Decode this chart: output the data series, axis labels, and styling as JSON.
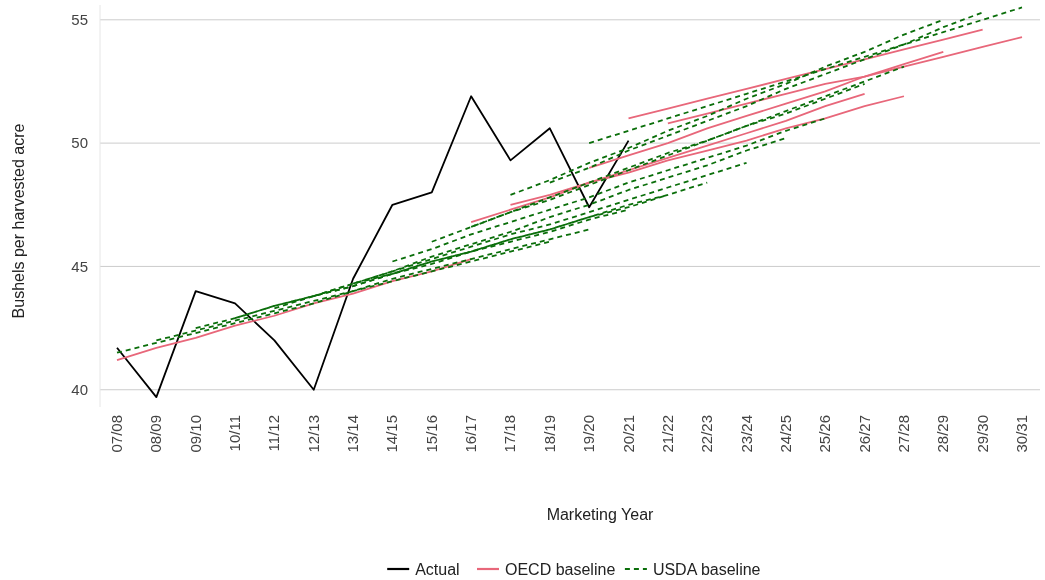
{
  "chart_data": {
    "type": "line",
    "xlabel": "Marketing Year",
    "ylabel": "Bushels per harvested acre",
    "categories": [
      "07/08",
      "08/09",
      "09/10",
      "10/11",
      "11/12",
      "12/13",
      "13/14",
      "14/15",
      "15/16",
      "16/17",
      "17/18",
      "18/19",
      "19/20",
      "20/21",
      "21/22",
      "22/23",
      "23/24",
      "24/25",
      "25/26",
      "26/27",
      "27/28",
      "28/29",
      "29/30",
      "30/31"
    ],
    "ylim": [
      39.3,
      55.6
    ],
    "yticks": [
      40,
      45,
      50,
      55
    ],
    "grid": "y",
    "legend": "bottom",
    "marker": "none",
    "series": [
      {
        "name": "Actual",
        "color": "#000000",
        "line_style": "solid",
        "values": [
          41.7,
          39.7,
          44.0,
          43.5,
          42.0,
          40.0,
          44.5,
          47.5,
          48.0,
          51.9,
          49.3,
          50.6,
          47.4,
          50.1,
          null,
          null,
          null,
          null,
          null,
          null,
          null,
          null,
          null,
          null
        ]
      },
      {
        "name": "OECD baseline",
        "color": "#e8677a",
        "line_style": "solid",
        "values": [
          41.2,
          41.7,
          42.1,
          42.6,
          43.0,
          43.5,
          43.9,
          44.4,
          44.8,
          45.3,
          null,
          null,
          null,
          null,
          null,
          null,
          null,
          null,
          null,
          null,
          null,
          null,
          null,
          null
        ]
      },
      {
        "color": "#e8677a",
        "line_style": "solid",
        "values": [
          null,
          null,
          null,
          null,
          null,
          null,
          null,
          null,
          null,
          46.8,
          47.3,
          47.8,
          48.4,
          48.9,
          49.4,
          49.9,
          50.4,
          50.9,
          51.5,
          52.0,
          null,
          null,
          null,
          null
        ]
      },
      {
        "color": "#e8677a",
        "line_style": "solid",
        "values": [
          null,
          null,
          null,
          null,
          null,
          null,
          null,
          null,
          null,
          null,
          47.5,
          47.9,
          48.4,
          48.8,
          49.3,
          49.7,
          50.1,
          50.6,
          51.0,
          51.5,
          51.9,
          null,
          null,
          null
        ]
      },
      {
        "color": "#e8677a",
        "line_style": "solid",
        "values": [
          null,
          null,
          null,
          null,
          null,
          null,
          null,
          null,
          null,
          null,
          null,
          null,
          49.0,
          49.5,
          50.0,
          50.6,
          51.1,
          51.6,
          52.1,
          52.7,
          53.2,
          53.7,
          null,
          null
        ]
      },
      {
        "color": "#e8677a",
        "line_style": "solid",
        "values": [
          null,
          null,
          null,
          null,
          null,
          null,
          null,
          null,
          null,
          null,
          null,
          null,
          null,
          51.0,
          51.4,
          51.8,
          52.2,
          52.6,
          53.0,
          53.4,
          53.8,
          54.2,
          54.6,
          null
        ]
      },
      {
        "color": "#e8677a",
        "line_style": "solid",
        "values": [
          null,
          null,
          null,
          null,
          null,
          null,
          null,
          null,
          null,
          null,
          null,
          null,
          null,
          null,
          50.8,
          51.2,
          51.6,
          52.0,
          52.4,
          52.7,
          53.1,
          53.5,
          53.9,
          54.3
        ]
      },
      {
        "name": "USDA baseline",
        "color": "#0a6e0a",
        "line_style": "dashed",
        "values": [
          41.5,
          41.9,
          42.3,
          42.7,
          43.1,
          43.5,
          44.0,
          44.4,
          44.8,
          45.2,
          45.6,
          46.0,
          null,
          null,
          null,
          null,
          null,
          null,
          null,
          null,
          null,
          null,
          null,
          null
        ]
      },
      {
        "color": "#0a6e0a",
        "line_style": "dashed",
        "values": [
          null,
          42.0,
          42.4,
          42.8,
          43.2,
          43.6,
          44.0,
          44.5,
          44.9,
          45.3,
          45.7,
          46.1,
          46.5,
          null,
          null,
          null,
          null,
          null,
          null,
          null,
          null,
          null,
          null,
          null
        ]
      },
      {
        "color": "#0a6e0a",
        "line_style": "dashed",
        "values": [
          null,
          null,
          42.5,
          42.9,
          43.4,
          43.8,
          44.2,
          44.7,
          45.1,
          45.6,
          46.0,
          46.4,
          46.9,
          47.3,
          null,
          null,
          null,
          null,
          null,
          null,
          null,
          null,
          null,
          null
        ]
      },
      {
        "color": "#0a6e0a",
        "line_style": "dashed",
        "values": [
          null,
          null,
          null,
          42.9,
          43.4,
          43.8,
          44.3,
          44.7,
          45.2,
          45.6,
          46.1,
          46.5,
          47.0,
          47.4,
          47.9,
          null,
          null,
          null,
          null,
          null,
          null,
          null,
          null,
          null
        ]
      },
      {
        "color": "#0a6e0a",
        "line_style": "dashed",
        "values": [
          null,
          null,
          null,
          null,
          43.3,
          43.8,
          44.2,
          44.7,
          45.2,
          45.6,
          46.1,
          46.5,
          47.0,
          47.5,
          47.9,
          48.4,
          null,
          null,
          null,
          null,
          null,
          null,
          null,
          null
        ]
      },
      {
        "color": "#0a6e0a",
        "line_style": "dashed",
        "values": [
          null,
          null,
          null,
          null,
          null,
          43.8,
          44.3,
          44.8,
          45.3,
          45.8,
          46.3,
          46.7,
          47.2,
          47.7,
          48.2,
          48.7,
          49.2,
          null,
          null,
          null,
          null,
          null,
          null,
          null
        ]
      },
      {
        "color": "#0a6e0a",
        "line_style": "dashed",
        "values": [
          null,
          null,
          null,
          null,
          null,
          null,
          44.3,
          44.8,
          45.4,
          45.9,
          46.4,
          47.0,
          47.5,
          48.1,
          48.6,
          49.1,
          49.7,
          50.2,
          null,
          null,
          null,
          null,
          null,
          null
        ]
      },
      {
        "color": "#0a6e0a",
        "line_style": "dashed",
        "values": [
          null,
          null,
          null,
          null,
          null,
          null,
          null,
          45.2,
          45.7,
          46.3,
          46.8,
          47.3,
          47.8,
          48.4,
          48.9,
          49.4,
          49.9,
          50.5,
          51.0,
          null,
          null,
          null,
          null,
          null
        ]
      },
      {
        "color": "#0a6e0a",
        "line_style": "dashed",
        "values": [
          null,
          null,
          null,
          null,
          null,
          null,
          null,
          null,
          46.0,
          46.6,
          47.2,
          47.7,
          48.3,
          48.9,
          49.5,
          50.1,
          50.7,
          51.2,
          51.8,
          52.4,
          null,
          null,
          null,
          null
        ]
      },
      {
        "color": "#0a6e0a",
        "line_style": "dashed",
        "values": [
          null,
          null,
          null,
          null,
          null,
          null,
          null,
          null,
          null,
          46.6,
          47.2,
          47.8,
          48.4,
          49.0,
          49.6,
          50.1,
          50.7,
          51.3,
          51.9,
          52.5,
          53.1,
          null,
          null,
          null
        ]
      },
      {
        "color": "#0a6e0a",
        "line_style": "dashed",
        "values": [
          null,
          null,
          null,
          null,
          null,
          null,
          null,
          null,
          null,
          null,
          47.9,
          48.5,
          49.2,
          49.8,
          50.5,
          51.1,
          51.8,
          52.4,
          53.1,
          53.7,
          54.4,
          55.0,
          null,
          null
        ]
      },
      {
        "color": "#0a6e0a",
        "line_style": "dashed",
        "values": [
          null,
          null,
          null,
          null,
          null,
          null,
          null,
          null,
          null,
          null,
          null,
          48.4,
          49.0,
          49.7,
          50.3,
          50.9,
          51.5,
          52.2,
          52.8,
          53.4,
          54.0,
          54.7,
          55.3,
          null
        ]
      },
      {
        "color": "#0a6e0a",
        "line_style": "dashed",
        "values": [
          null,
          null,
          null,
          null,
          null,
          null,
          null,
          null,
          null,
          null,
          null,
          null,
          50.0,
          50.5,
          51.0,
          51.5,
          52.0,
          52.5,
          53.0,
          53.5,
          54.0,
          54.5,
          55.0,
          55.5
        ]
      }
    ]
  }
}
